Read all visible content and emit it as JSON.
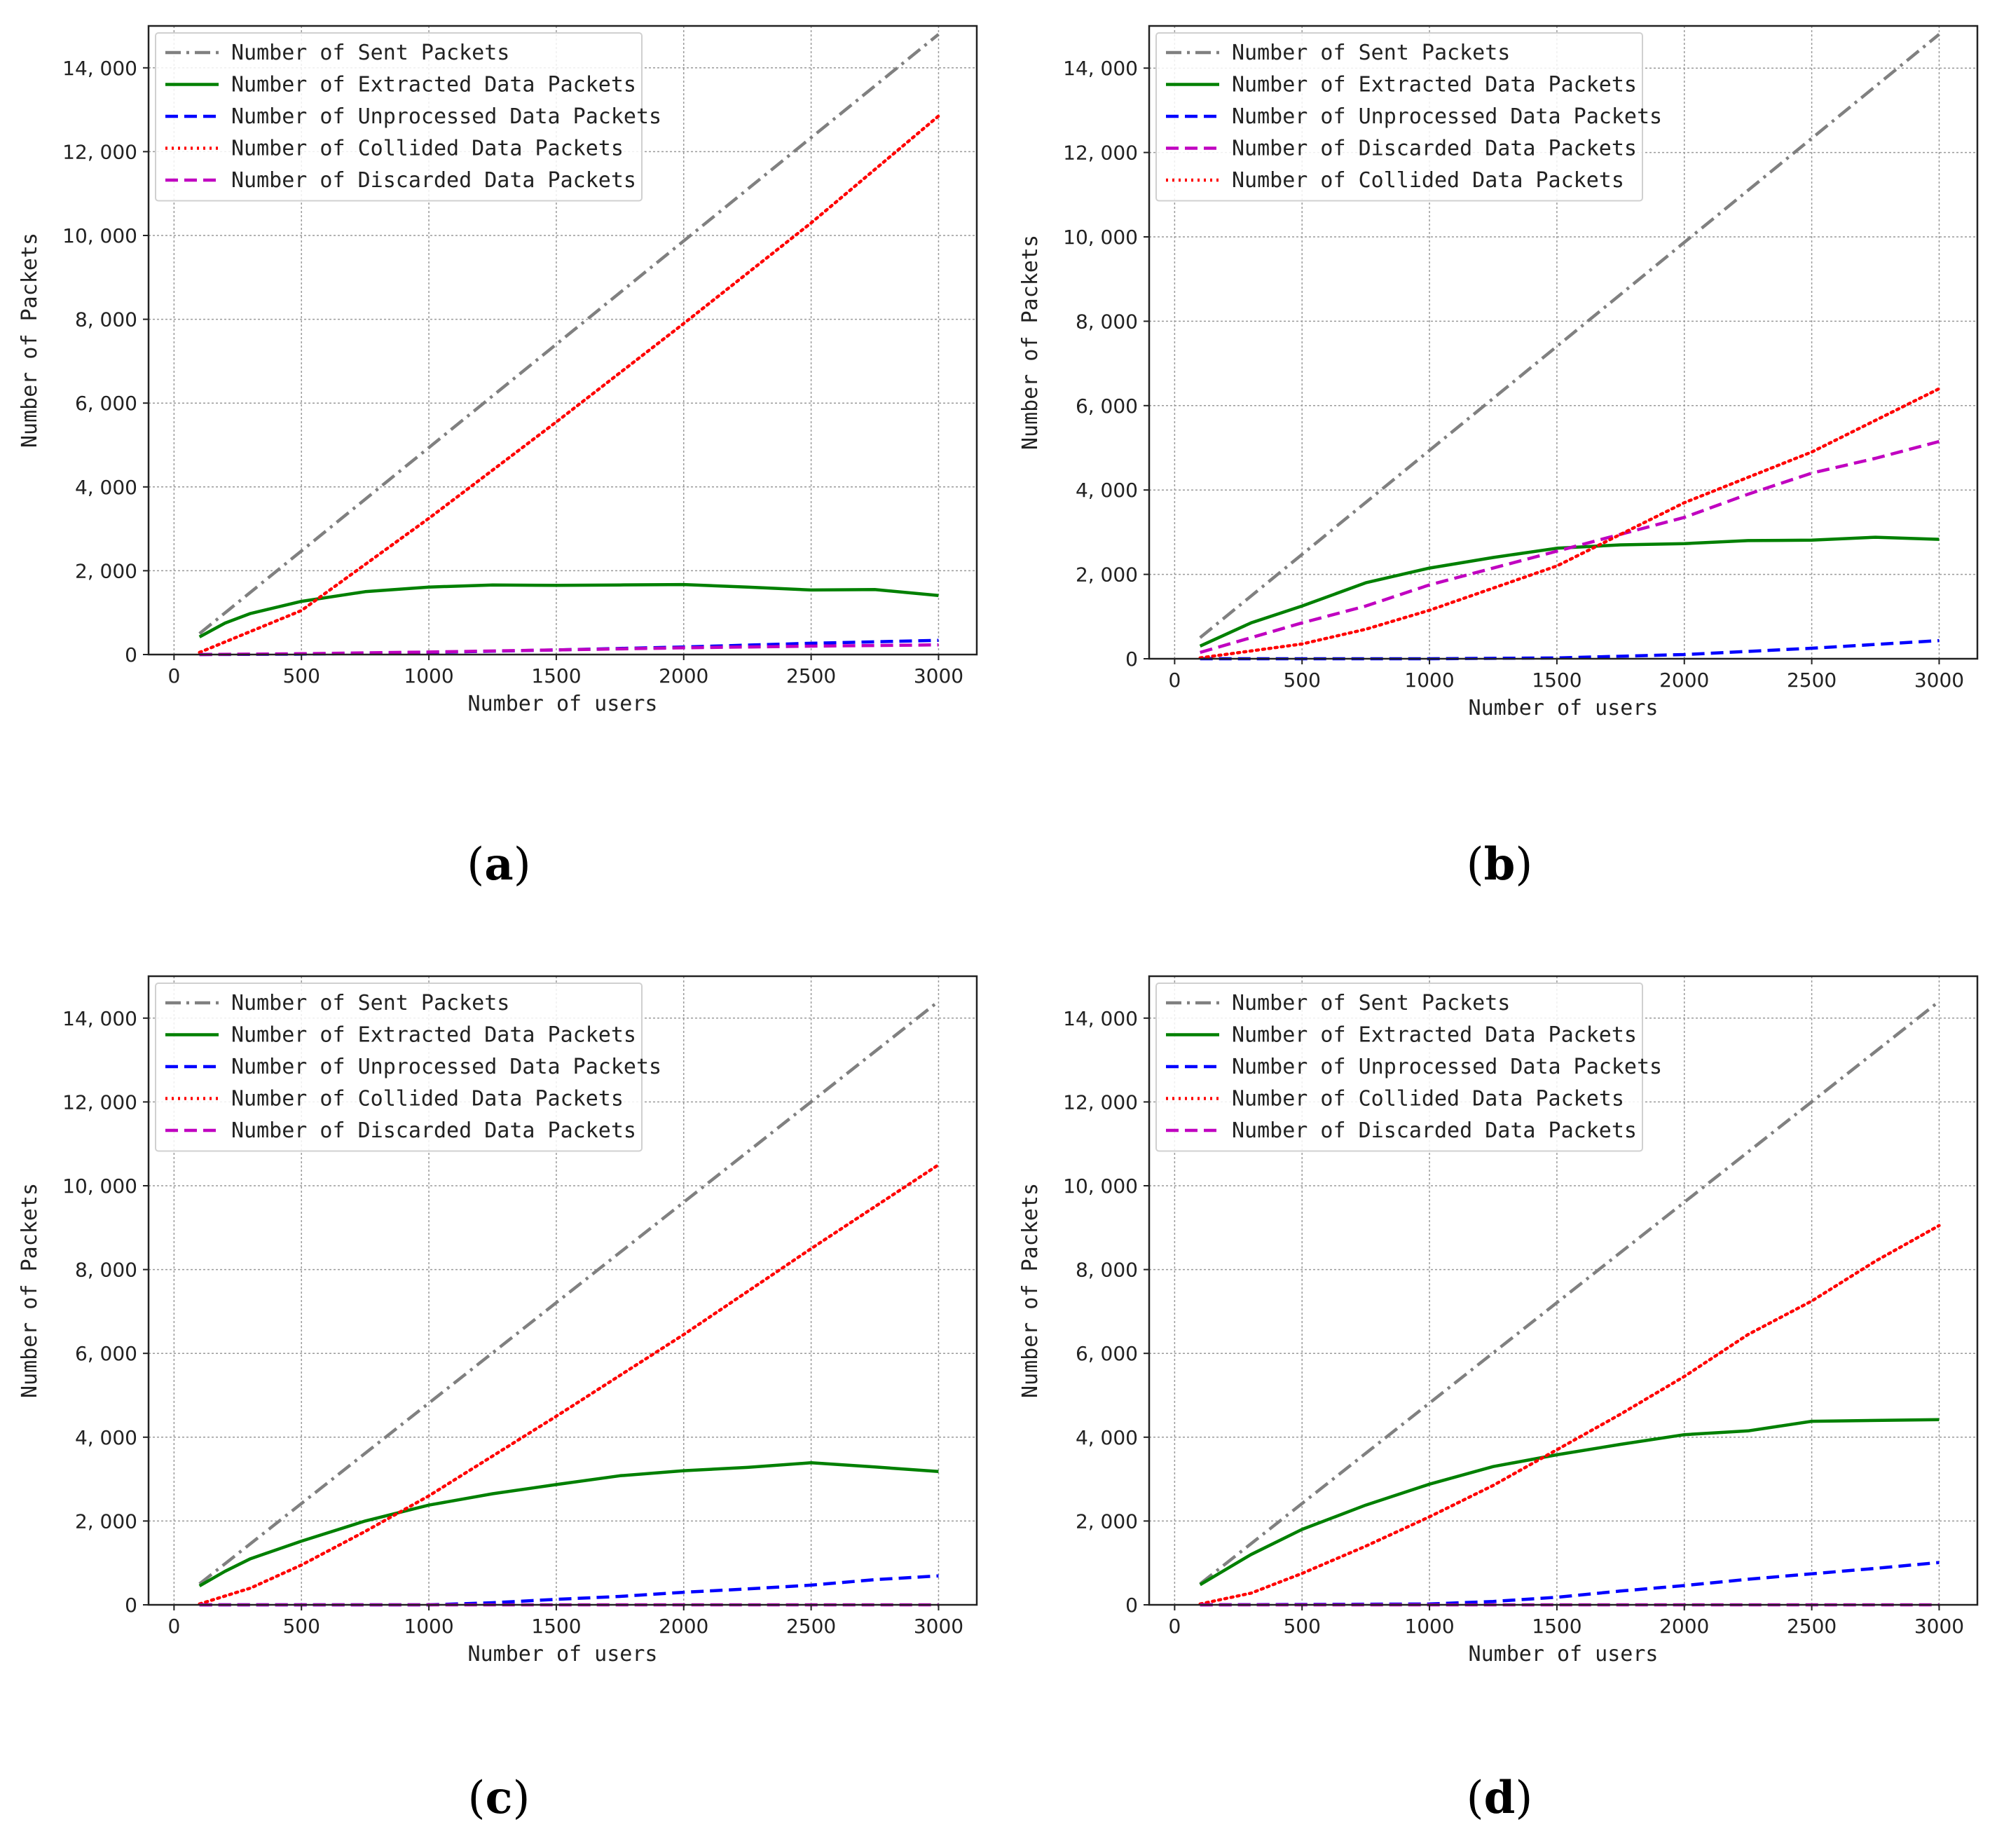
{
  "figure_title": "",
  "chart_data": [
    {
      "type": "line",
      "panel_label": "a",
      "xlabel": "Number of users",
      "ylabel": "Number of Packets",
      "xlim": [
        -100,
        3150
      ],
      "ylim": [
        0,
        15000
      ],
      "xticks": [
        0,
        500,
        1000,
        1500,
        2000,
        2500,
        3000
      ],
      "xtick_labels": [
        "0",
        "500",
        "1000",
        "1500",
        "2000",
        "2500",
        "3000"
      ],
      "yticks": [
        0,
        2000,
        4000,
        6000,
        8000,
        10000,
        12000,
        14000
      ],
      "ytick_labels": [
        "0",
        "2, 000",
        "4, 000",
        "6, 000",
        "8, 000",
        "10, 000",
        "12, 000",
        "14, 000"
      ],
      "grid": true,
      "legend_position": "top-left",
      "series": [
        {
          "name": "Number of Sent Packets",
          "color": "#808080",
          "dash": "dashdot",
          "x": [
            100,
            3000
          ],
          "y": [
            500,
            14800
          ]
        },
        {
          "name": "Number of Extracted Data Packets",
          "color": "#008000",
          "dash": "solid",
          "x": [
            100,
            200,
            300,
            500,
            750,
            1000,
            1250,
            1500,
            1750,
            2000,
            2250,
            2500,
            2750,
            3000
          ],
          "y": [
            420,
            750,
            980,
            1270,
            1500,
            1610,
            1660,
            1650,
            1660,
            1670,
            1610,
            1540,
            1550,
            1410
          ]
        },
        {
          "name": "Number of Unprocessed Data Packets",
          "color": "#0000ff",
          "dash": "dashed",
          "x": [
            100,
            500,
            1000,
            1500,
            2000,
            2500,
            3000
          ],
          "y": [
            0,
            10,
            50,
            110,
            180,
            270,
            340
          ]
        },
        {
          "name": "Number of Collided Data Packets",
          "color": "#ff0000",
          "dash": "dotted",
          "x": [
            100,
            500,
            1000,
            1500,
            2000,
            2500,
            3000
          ],
          "y": [
            50,
            1050,
            3250,
            5550,
            7900,
            10300,
            12850
          ]
        },
        {
          "name": "Number of Discarded Data Packets",
          "color": "#c000c0",
          "dash": "dashed",
          "x": [
            100,
            500,
            1000,
            1500,
            2000,
            2500,
            3000
          ],
          "y": [
            0,
            20,
            60,
            110,
            160,
            200,
            230
          ]
        }
      ]
    },
    {
      "type": "line",
      "panel_label": "b",
      "xlabel": "Number of users",
      "ylabel": "Number of Packets",
      "xlim": [
        -100,
        3150
      ],
      "ylim": [
        0,
        15000
      ],
      "xticks": [
        0,
        500,
        1000,
        1500,
        2000,
        2500,
        3000
      ],
      "xtick_labels": [
        "0",
        "500",
        "1000",
        "1500",
        "2000",
        "2500",
        "3000"
      ],
      "yticks": [
        0,
        2000,
        4000,
        6000,
        8000,
        10000,
        12000,
        14000
      ],
      "ytick_labels": [
        "0",
        "2, 000",
        "4, 000",
        "6, 000",
        "8, 000",
        "10, 000",
        "12, 000",
        "14, 000"
      ],
      "grid": true,
      "legend_position": "top-left",
      "series": [
        {
          "name": "Number of Sent Packets",
          "color": "#808080",
          "dash": "dashdot",
          "x": [
            100,
            3000
          ],
          "y": [
            500,
            14800
          ]
        },
        {
          "name": "Number of Extracted Data Packets",
          "color": "#008000",
          "dash": "solid",
          "x": [
            100,
            300,
            500,
            750,
            1000,
            1250,
            1500,
            1750,
            2000,
            2250,
            2500,
            2750,
            3000
          ],
          "y": [
            300,
            850,
            1250,
            1800,
            2150,
            2400,
            2620,
            2700,
            2730,
            2800,
            2810,
            2880,
            2830
          ]
        },
        {
          "name": "Number of Unprocessed Data Packets",
          "color": "#0000ff",
          "dash": "dashed",
          "x": [
            100,
            1000,
            1500,
            2000,
            2500,
            3000
          ],
          "y": [
            0,
            0,
            20,
            100,
            250,
            430
          ]
        },
        {
          "name": "Number of Discarded Data Packets",
          "color": "#c000c0",
          "dash": "dashed",
          "x": [
            100,
            500,
            750,
            1000,
            1250,
            1500,
            1750,
            2000,
            2250,
            2500,
            2750,
            3000
          ],
          "y": [
            150,
            850,
            1250,
            1750,
            2150,
            2550,
            2950,
            3350,
            3900,
            4400,
            4750,
            5150
          ]
        },
        {
          "name": "Number of Collided Data Packets",
          "color": "#ff0000",
          "dash": "dotted",
          "x": [
            100,
            500,
            750,
            1000,
            1500,
            2000,
            2500,
            3000
          ],
          "y": [
            20,
            350,
            700,
            1150,
            2200,
            3700,
            4900,
            6400
          ]
        }
      ]
    },
    {
      "type": "line",
      "panel_label": "c",
      "xlabel": "Number of users",
      "ylabel": "Number of Packets",
      "xlim": [
        -100,
        3150
      ],
      "ylim": [
        0,
        15000
      ],
      "xticks": [
        0,
        500,
        1000,
        1500,
        2000,
        2500,
        3000
      ],
      "xtick_labels": [
        "0",
        "500",
        "1000",
        "1500",
        "2000",
        "2500",
        "3000"
      ],
      "yticks": [
        0,
        2000,
        4000,
        6000,
        8000,
        10000,
        12000,
        14000
      ],
      "ytick_labels": [
        "0",
        "2, 000",
        "4, 000",
        "6, 000",
        "8, 000",
        "10, 000",
        "12, 000",
        "14, 000"
      ],
      "grid": true,
      "legend_position": "top-left",
      "series": [
        {
          "name": "Number of Sent Packets",
          "color": "#808080",
          "dash": "dashdot",
          "x": [
            100,
            3000
          ],
          "y": [
            500,
            14400
          ]
        },
        {
          "name": "Number of Extracted Data Packets",
          "color": "#008000",
          "dash": "solid",
          "x": [
            100,
            200,
            300,
            500,
            750,
            1000,
            1250,
            1500,
            1750,
            2000,
            2250,
            2500,
            2750,
            3000
          ],
          "y": [
            450,
            800,
            1100,
            1520,
            2000,
            2380,
            2650,
            2870,
            3080,
            3200,
            3280,
            3390,
            3290,
            3180
          ]
        },
        {
          "name": "Number of Unprocessed Data Packets",
          "color": "#0000ff",
          "dash": "dashed",
          "x": [
            100,
            1000,
            1250,
            1500,
            1750,
            2000,
            2250,
            2500,
            2750,
            3000
          ],
          "y": [
            0,
            0,
            50,
            130,
            200,
            300,
            380,
            470,
            600,
            690
          ]
        },
        {
          "name": "Number of Collided Data Packets",
          "color": "#ff0000",
          "dash": "dotted",
          "x": [
            100,
            300,
            500,
            750,
            1000,
            1500,
            2000,
            2500,
            3000
          ],
          "y": [
            20,
            400,
            950,
            1750,
            2600,
            4500,
            6450,
            8500,
            10500
          ]
        },
        {
          "name": "Number of Discarded Data Packets",
          "color": "#c000c0",
          "dash": "dashed",
          "x": [
            100,
            3000
          ],
          "y": [
            0,
            0
          ]
        }
      ]
    },
    {
      "type": "line",
      "panel_label": "d",
      "xlabel": "Number of users",
      "ylabel": "Number of Packets",
      "xlim": [
        -100,
        3150
      ],
      "ylim": [
        0,
        15000
      ],
      "xticks": [
        0,
        500,
        1000,
        1500,
        2000,
        2500,
        3000
      ],
      "xtick_labels": [
        "0",
        "500",
        "1000",
        "1500",
        "2000",
        "2500",
        "3000"
      ],
      "yticks": [
        0,
        2000,
        4000,
        6000,
        8000,
        10000,
        12000,
        14000
      ],
      "ytick_labels": [
        "0",
        "2, 000",
        "4, 000",
        "6, 000",
        "8, 000",
        "10, 000",
        "12, 000",
        "14, 000"
      ],
      "grid": true,
      "legend_position": "top-left",
      "series": [
        {
          "name": "Number of Sent Packets",
          "color": "#808080",
          "dash": "dashdot",
          "x": [
            100,
            3000
          ],
          "y": [
            500,
            14400
          ]
        },
        {
          "name": "Number of Extracted Data Packets",
          "color": "#008000",
          "dash": "solid",
          "x": [
            100,
            300,
            500,
            750,
            1000,
            1250,
            1500,
            1750,
            2000,
            2250,
            2500,
            2750,
            3000
          ],
          "y": [
            480,
            1200,
            1800,
            2380,
            2880,
            3300,
            3580,
            3830,
            4060,
            4150,
            4380,
            4400,
            4420
          ]
        },
        {
          "name": "Number of Unprocessed Data Packets",
          "color": "#0000ff",
          "dash": "dashed",
          "x": [
            100,
            1000,
            1250,
            1500,
            1750,
            2000,
            2250,
            2500,
            2750,
            3000
          ],
          "y": [
            0,
            20,
            80,
            180,
            330,
            460,
            610,
            740,
            870,
            1010
          ]
        },
        {
          "name": "Number of Collided Data Packets",
          "color": "#ff0000",
          "dash": "dotted",
          "x": [
            100,
            300,
            500,
            750,
            1000,
            1250,
            1500,
            1750,
            2000,
            2250,
            2500,
            2750,
            3000
          ],
          "y": [
            20,
            280,
            750,
            1400,
            2100,
            2850,
            3700,
            4550,
            5450,
            6450,
            7250,
            8200,
            9050
          ]
        },
        {
          "name": "Number of Discarded Data Packets",
          "color": "#c000c0",
          "dash": "dashed",
          "x": [
            100,
            3000
          ],
          "y": [
            0,
            0
          ]
        }
      ]
    }
  ]
}
